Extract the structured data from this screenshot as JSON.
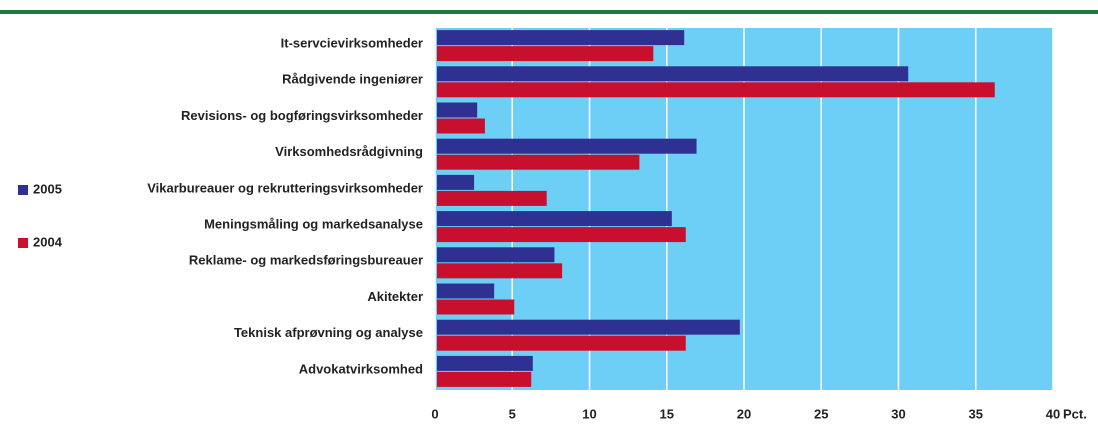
{
  "chart_data": {
    "type": "hbar",
    "categories": [
      "It-servcievirksomheder",
      "Rådgivende ingeniører",
      "Revisions- og bogføringsvirksomheder",
      "Virksomhedsrådgivning",
      "Vikarbureauer og rekrutteringsvirksomheder",
      "Meningsmåling og markedsanalyse",
      "Reklame- og markedsføringsbureauer",
      "Akitekter",
      "Teknisk afprøvning og analyse",
      "Advokatvirksomhed"
    ],
    "series": [
      {
        "name": "2005",
        "color": "#2e3192",
        "values": [
          16.0,
          30.5,
          2.6,
          16.8,
          2.4,
          15.2,
          7.6,
          3.7,
          19.6,
          6.2
        ]
      },
      {
        "name": "2004",
        "color": "#c8102e",
        "values": [
          14.0,
          36.1,
          3.1,
          13.1,
          7.1,
          16.1,
          8.1,
          5.0,
          16.1,
          6.1
        ]
      }
    ],
    "xlim": [
      0,
      40
    ],
    "xticks": [
      0,
      5,
      10,
      15,
      20,
      25,
      30,
      35,
      40
    ],
    "x_label": "Pct.",
    "grid": true,
    "background": "#6dcff6",
    "legend": "left"
  }
}
